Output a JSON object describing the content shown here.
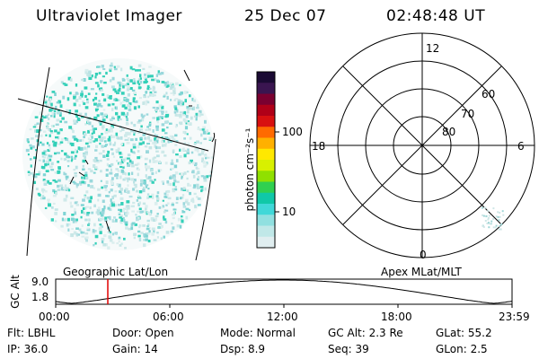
{
  "header": {
    "instrument": "Ultraviolet Imager",
    "date": "25 Dec 07",
    "time": "02:48:48 UT"
  },
  "colorbar": {
    "unit_label": "photon cm⁻²s⁻¹",
    "ticks": [
      "100",
      "10"
    ],
    "colors": [
      "#1a0a33",
      "#3a1550",
      "#7a0030",
      "#b00018",
      "#d81010",
      "#ff6a00",
      "#ffb000",
      "#ffe800",
      "#d8f000",
      "#90e000",
      "#30d050",
      "#10c8a8",
      "#40d8d8",
      "#90e0e0",
      "#c0e8e8",
      "#e0eef0"
    ]
  },
  "polar": {
    "labels": {
      "top": "12",
      "left": "18",
      "right": "6",
      "bottom": "0"
    },
    "ring_labels": [
      "80",
      "70",
      "60"
    ]
  },
  "left_panel_label": "Geographic Lat/Lon",
  "right_panel_label": "Apex MLat/MLT",
  "orbit_plot": {
    "ylabel": "GC Alt",
    "yticks": [
      "9.0",
      "1.8"
    ],
    "xticks": [
      "00:00",
      "06:00",
      "12:00",
      "18:00",
      "23:59"
    ],
    "marker_color": "#e00000"
  },
  "info": {
    "flt": "Flt: LBHL",
    "ip": "IP: 36.0",
    "door": "Door: Open",
    "gain": "Gain: 14",
    "mode": "Mode: Normal",
    "dsp": "Dsp:    8.9",
    "gcalt": "GC Alt: 2.3 Re",
    "seq": "Seq: 39",
    "glat": "GLat:   55.2",
    "glon": "GLon:    2.5"
  }
}
